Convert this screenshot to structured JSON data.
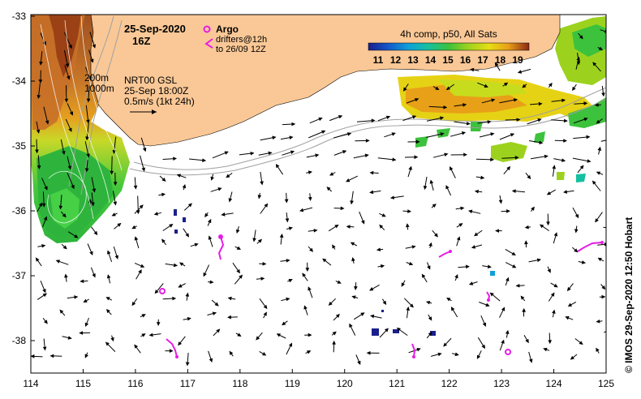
{
  "map": {
    "date": "25-Sep-2020",
    "hour": "16Z",
    "legend_argo": "Argo",
    "legend_drifters_line1": "drifters@12h",
    "legend_drifters_line2": "to 26/09 12Z",
    "contour_200": "200m",
    "contour_1000": "1000m",
    "nrt_line1": "NRT00 GSL",
    "nrt_line2": "25-Sep 18:00Z",
    "scale_label": "0.5m/s (1kt 24h)",
    "credit": "© IMOS 29-Sep-2020 12:50 Hobart",
    "colorbar": {
      "title": "4h comp, p50, All Sats",
      "ticks": [
        "11",
        "12",
        "13",
        "14",
        "15",
        "16",
        "17",
        "18",
        "19"
      ],
      "colors": [
        "#1a1f8c",
        "#1456c8",
        "#0fa0d8",
        "#15c0a0",
        "#3cc23c",
        "#9cd21e",
        "#e6de14",
        "#e8a018",
        "#c8641c",
        "#8c2814"
      ]
    },
    "x_ticks": [
      "114",
      "115",
      "116",
      "117",
      "118",
      "119",
      "120",
      "121",
      "122",
      "123",
      "124",
      "125"
    ],
    "y_ticks": [
      "-33",
      "-34",
      "-35",
      "-36",
      "-37",
      "-38"
    ],
    "colors": {
      "land": "#fac896",
      "argo": "#e61ee6",
      "arrow": "#000000",
      "contour": "#a0a0a0"
    }
  }
}
